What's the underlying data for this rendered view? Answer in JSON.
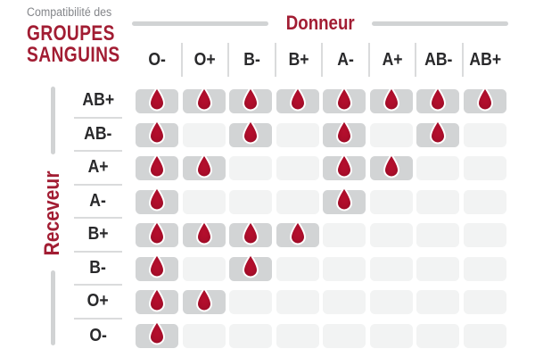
{
  "title": {
    "line1": "Compatibilité des",
    "line2": "GROUPES",
    "line3": "SANGUINS"
  },
  "axes": {
    "donor": "Donneur",
    "receiver": "Receveur"
  },
  "colors": {
    "accent_red": "#a21d33",
    "drop_center": "#b50f2d",
    "drop_edge": "#8c0a22",
    "cell_filled": "#d2d4d5",
    "cell_empty": "#f2f3f3",
    "bar_gray": "#d1d3d4",
    "divider": "#dadbdc",
    "header_text": "#29292b",
    "muted_text": "#84868a"
  },
  "icons": {
    "compatible_marker": "blood-drop-icon"
  },
  "chart_data": {
    "type": "heatmap",
    "title": "Compatibilité des GROUPES SANGUINS",
    "x_axis_label": "Donneur",
    "y_axis_label": "Receveur",
    "columns": [
      "O-",
      "O+",
      "B-",
      "B+",
      "A-",
      "A+",
      "AB-",
      "AB+"
    ],
    "rows": [
      "AB+",
      "AB-",
      "A+",
      "A-",
      "B+",
      "B-",
      "O+",
      "O-"
    ],
    "matrix": [
      [
        1,
        1,
        1,
        1,
        1,
        1,
        1,
        1
      ],
      [
        1,
        0,
        1,
        0,
        1,
        0,
        1,
        0
      ],
      [
        1,
        1,
        0,
        0,
        1,
        1,
        0,
        0
      ],
      [
        1,
        0,
        0,
        0,
        1,
        0,
        0,
        0
      ],
      [
        1,
        1,
        1,
        1,
        0,
        0,
        0,
        0
      ],
      [
        1,
        0,
        1,
        0,
        0,
        0,
        0,
        0
      ],
      [
        1,
        1,
        0,
        0,
        0,
        0,
        0,
        0
      ],
      [
        1,
        0,
        0,
        0,
        0,
        0,
        0,
        0
      ]
    ],
    "cell_marker": "blood-drop",
    "grid": "off",
    "legend_position": "none"
  }
}
